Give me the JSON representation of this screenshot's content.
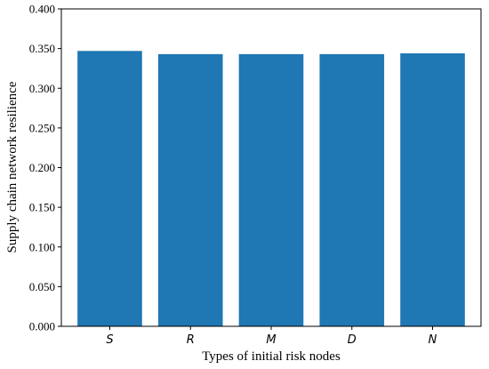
{
  "chart_data": {
    "type": "bar",
    "categories": [
      "S",
      "R",
      "M",
      "D",
      "N"
    ],
    "values": [
      0.347,
      0.343,
      0.343,
      0.343,
      0.344
    ],
    "title": "",
    "xlabel": "Types of initial risk nodes",
    "ylabel": "Supply chain network resilience",
    "ylim": [
      0,
      0.4
    ],
    "yticks": [
      "0.000",
      "0.050",
      "0.100",
      "0.150",
      "0.200",
      "0.250",
      "0.300",
      "0.350",
      "0.400"
    ],
    "bar_color": "#1f77b4",
    "grid": false,
    "legend": "none"
  }
}
